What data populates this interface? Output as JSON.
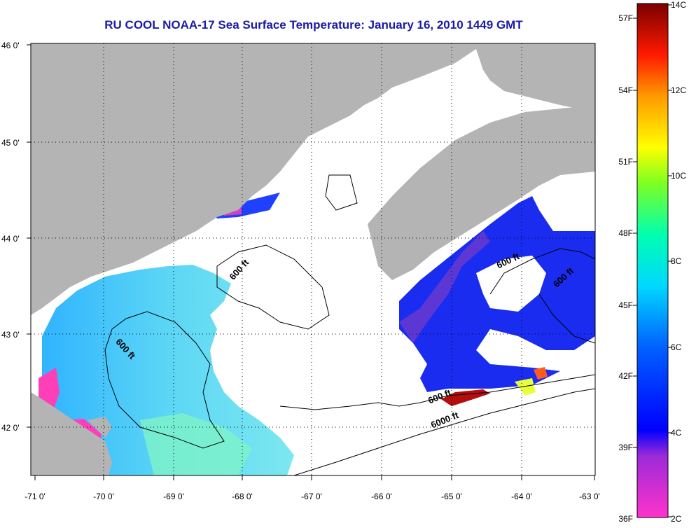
{
  "title": "RU COOL  NOAA-17  Sea Surface Temperature:  January 16, 2010 1449 GMT",
  "map": {
    "lat_ticks": [
      "46 0'",
      "45 0'",
      "44 0'",
      "43 0'",
      "42 0'"
    ],
    "lon_ticks": [
      "-71 0'",
      "-70 0'",
      "-69 0'",
      "-68 0'",
      "-67 0'",
      "-66 0'",
      "-65 0'",
      "-64 0'",
      "-63 0'"
    ],
    "contour_labels": [
      "600 ft",
      "600 ft",
      "600 ft",
      "600 ft",
      "600 ft",
      "6000 ft"
    ],
    "land_color": "#b4b4b4",
    "cloud_color": "#ffffff"
  },
  "colorbar": {
    "fahrenheit_labels": [
      "57F",
      "54F",
      "51F",
      "48F",
      "45F",
      "42F",
      "39F",
      "36F"
    ],
    "celsius_labels": [
      "14C",
      "12C",
      "10C",
      "8C",
      "6C",
      "4C",
      "2C"
    ],
    "colors": [
      "#ff33cc",
      "#7a1fd6",
      "#0000ff",
      "#00bfff",
      "#00ffcc",
      "#55ff33",
      "#ffff00",
      "#ff9900",
      "#ff0000",
      "#8b0000"
    ]
  }
}
